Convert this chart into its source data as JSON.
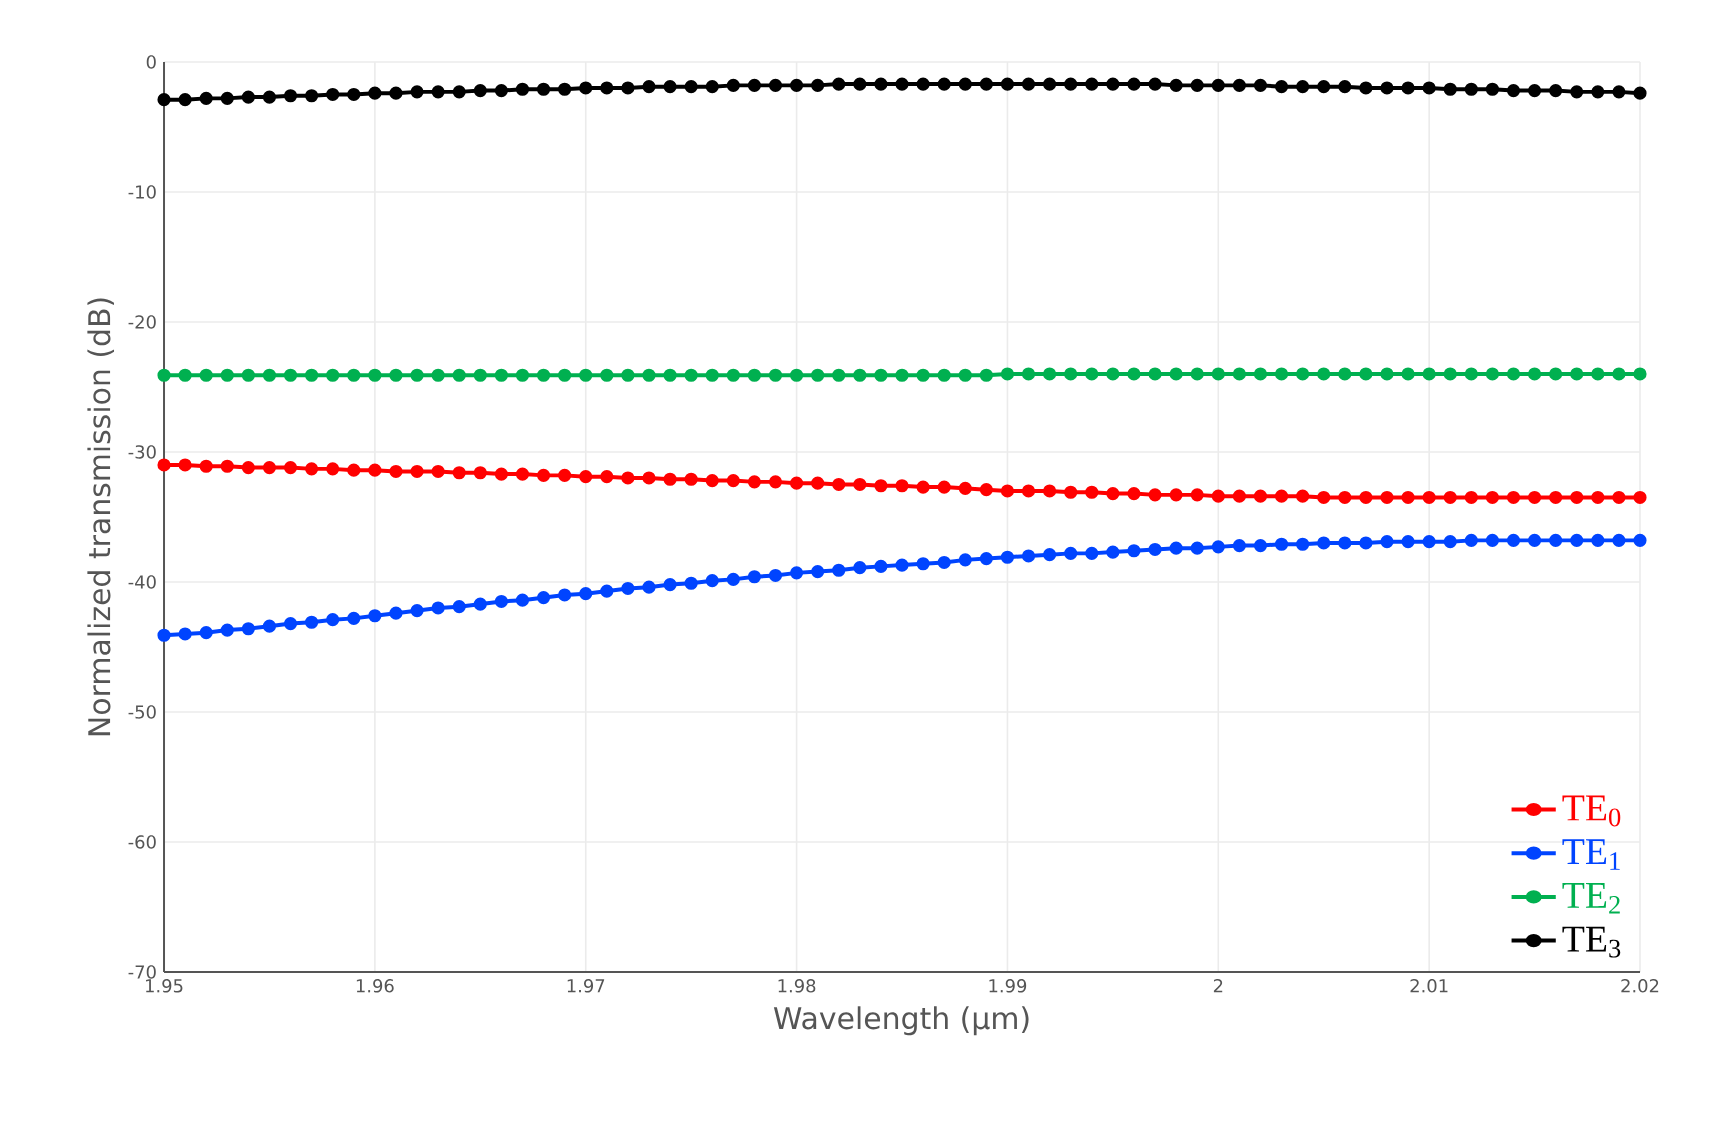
{
  "chart_data": {
    "type": "line",
    "xlabel": "Wavelength (µm)",
    "ylabel": "Normalized transmission (dB)",
    "x": [
      1.95,
      1.951,
      1.952,
      1.953,
      1.954,
      1.955,
      1.956,
      1.957,
      1.958,
      1.959,
      1.96,
      1.961,
      1.962,
      1.963,
      1.964,
      1.965,
      1.966,
      1.967,
      1.968,
      1.969,
      1.97,
      1.971,
      1.972,
      1.973,
      1.974,
      1.975,
      1.976,
      1.977,
      1.978,
      1.979,
      1.98,
      1.981,
      1.982,
      1.983,
      1.984,
      1.985,
      1.986,
      1.987,
      1.988,
      1.989,
      1.99,
      1.991,
      1.992,
      1.993,
      1.994,
      1.995,
      1.996,
      1.997,
      1.998,
      1.999,
      2.0,
      2.001,
      2.002,
      2.003,
      2.004,
      2.005,
      2.006,
      2.007,
      2.008,
      2.009,
      2.01,
      2.011,
      2.012,
      2.013,
      2.014,
      2.015,
      2.016,
      2.017,
      2.018,
      2.019,
      2.02
    ],
    "series": [
      {
        "name": "TE$_{0}$",
        "color": "#ff0000",
        "values": [
          -31.0,
          -31.0,
          -31.1,
          -31.1,
          -31.2,
          -31.2,
          -31.2,
          -31.3,
          -31.3,
          -31.4,
          -31.4,
          -31.5,
          -31.5,
          -31.5,
          -31.6,
          -31.6,
          -31.7,
          -31.7,
          -31.8,
          -31.8,
          -31.9,
          -31.9,
          -32.0,
          -32.0,
          -32.1,
          -32.1,
          -32.2,
          -32.2,
          -32.3,
          -32.3,
          -32.4,
          -32.4,
          -32.5,
          -32.5,
          -32.6,
          -32.6,
          -32.7,
          -32.7,
          -32.8,
          -32.9,
          -33.0,
          -33.0,
          -33.0,
          -33.1,
          -33.1,
          -33.2,
          -33.2,
          -33.3,
          -33.3,
          -33.3,
          -33.4,
          -33.4,
          -33.4,
          -33.4,
          -33.4,
          -33.5,
          -33.5,
          -33.5,
          -33.5,
          -33.5,
          -33.5,
          -33.5,
          -33.5,
          -33.5,
          -33.5,
          -33.5,
          -33.5,
          -33.5,
          -33.5,
          -33.5,
          -33.5
        ]
      },
      {
        "name": "TE$_{1}$",
        "color": "#0044ff",
        "values": [
          -44.1,
          -44.0,
          -43.9,
          -43.7,
          -43.6,
          -43.4,
          -43.2,
          -43.1,
          -42.9,
          -42.8,
          -42.6,
          -42.4,
          -42.2,
          -42.0,
          -41.9,
          -41.7,
          -41.5,
          -41.4,
          -41.2,
          -41.0,
          -40.9,
          -40.7,
          -40.5,
          -40.4,
          -40.2,
          -40.1,
          -39.9,
          -39.8,
          -39.6,
          -39.5,
          -39.3,
          -39.2,
          -39.1,
          -38.9,
          -38.8,
          -38.7,
          -38.6,
          -38.5,
          -38.3,
          -38.2,
          -38.1,
          -38.0,
          -37.9,
          -37.8,
          -37.8,
          -37.7,
          -37.6,
          -37.5,
          -37.4,
          -37.4,
          -37.3,
          -37.2,
          -37.2,
          -37.1,
          -37.1,
          -37.0,
          -37.0,
          -37.0,
          -36.9,
          -36.9,
          -36.9,
          -36.9,
          -36.8,
          -36.8,
          -36.8,
          -36.8,
          -36.8,
          -36.8,
          -36.8,
          -36.8,
          -36.8
        ]
      },
      {
        "name": "TE$_{2}$",
        "color": "#00b050",
        "values": [
          -24.1,
          -24.1,
          -24.1,
          -24.1,
          -24.1,
          -24.1,
          -24.1,
          -24.1,
          -24.1,
          -24.1,
          -24.1,
          -24.1,
          -24.1,
          -24.1,
          -24.1,
          -24.1,
          -24.1,
          -24.1,
          -24.1,
          -24.1,
          -24.1,
          -24.1,
          -24.1,
          -24.1,
          -24.1,
          -24.1,
          -24.1,
          -24.1,
          -24.1,
          -24.1,
          -24.1,
          -24.1,
          -24.1,
          -24.1,
          -24.1,
          -24.1,
          -24.1,
          -24.1,
          -24.1,
          -24.1,
          -24.0,
          -24.0,
          -24.0,
          -24.0,
          -24.0,
          -24.0,
          -24.0,
          -24.0,
          -24.0,
          -24.0,
          -24.0,
          -24.0,
          -24.0,
          -24.0,
          -24.0,
          -24.0,
          -24.0,
          -24.0,
          -24.0,
          -24.0,
          -24.0,
          -24.0,
          -24.0,
          -24.0,
          -24.0,
          -24.0,
          -24.0,
          -24.0,
          -24.0,
          -24.0,
          -24.0
        ]
      },
      {
        "name": "TE$_{3}$",
        "color": "#000000",
        "values": [
          -2.9,
          -2.9,
          -2.8,
          -2.8,
          -2.7,
          -2.7,
          -2.6,
          -2.6,
          -2.5,
          -2.5,
          -2.4,
          -2.4,
          -2.3,
          -2.3,
          -2.3,
          -2.2,
          -2.2,
          -2.1,
          -2.1,
          -2.1,
          -2.0,
          -2.0,
          -2.0,
          -1.9,
          -1.9,
          -1.9,
          -1.9,
          -1.8,
          -1.8,
          -1.8,
          -1.8,
          -1.8,
          -1.7,
          -1.7,
          -1.7,
          -1.7,
          -1.7,
          -1.7,
          -1.7,
          -1.7,
          -1.7,
          -1.7,
          -1.7,
          -1.7,
          -1.7,
          -1.7,
          -1.7,
          -1.7,
          -1.8,
          -1.8,
          -1.8,
          -1.8,
          -1.8,
          -1.9,
          -1.9,
          -1.9,
          -1.9,
          -2.0,
          -2.0,
          -2.0,
          -2.0,
          -2.1,
          -2.1,
          -2.1,
          -2.2,
          -2.2,
          -2.2,
          -2.3,
          -2.3,
          -2.3,
          -2.4
        ]
      }
    ],
    "xlim": [
      1.95,
      2.02
    ],
    "xticks": [
      1.95,
      1.96,
      1.97,
      1.98,
      1.99,
      2,
      2.01,
      2.02
    ],
    "ylim": [
      -70,
      0
    ],
    "yticks": [
      -70,
      -60,
      -50,
      -40,
      -30,
      -20,
      -10,
      0
    ],
    "grid": true,
    "legend": "bottom right",
    "marker": "circle",
    "line_style": "solid"
  }
}
